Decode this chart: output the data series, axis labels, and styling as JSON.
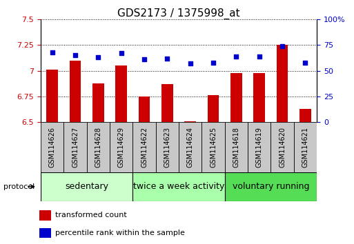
{
  "title": "GDS2173 / 1375998_at",
  "samples": [
    "GSM114626",
    "GSM114627",
    "GSM114628",
    "GSM114629",
    "GSM114622",
    "GSM114623",
    "GSM114624",
    "GSM114625",
    "GSM114618",
    "GSM114619",
    "GSM114620",
    "GSM114621"
  ],
  "bar_values": [
    7.01,
    7.1,
    6.88,
    7.05,
    6.75,
    6.87,
    6.51,
    6.76,
    6.98,
    6.98,
    7.25,
    6.63
  ],
  "percentile_values": [
    68,
    65,
    63,
    67,
    61,
    62,
    57,
    58,
    64,
    64,
    74,
    58
  ],
  "bar_color": "#cc0000",
  "dot_color": "#0000cc",
  "ymin": 6.5,
  "ymax": 7.5,
  "yticks": [
    6.5,
    6.75,
    7.0,
    7.25,
    7.5
  ],
  "ytick_labels": [
    "6.5",
    "6.75",
    "7",
    "7.25",
    "7.5"
  ],
  "y2min": 0,
  "y2max": 100,
  "y2ticks": [
    0,
    25,
    50,
    75,
    100
  ],
  "y2ticklabels": [
    "0",
    "25",
    "50",
    "75",
    "100%"
  ],
  "groups": [
    {
      "label": "sedentary",
      "start": 0,
      "end": 3,
      "color": "#ccffcc"
    },
    {
      "label": "twice a week activity",
      "start": 4,
      "end": 7,
      "color": "#aaffaa"
    },
    {
      "label": "voluntary running",
      "start": 8,
      "end": 11,
      "color": "#55dd55"
    }
  ],
  "protocol_label": "protocol",
  "legend_bar_label": "transformed count",
  "legend_dot_label": "percentile rank within the sample",
  "bar_width": 0.5,
  "tick_label_color_left": "#cc0000",
  "tick_label_color_right": "#0000cc",
  "title_fontsize": 11,
  "tick_fontsize": 8,
  "sample_fontsize": 7,
  "group_fontsize": 9,
  "legend_fontsize": 8,
  "sample_box_color": "#c8c8c8",
  "white": "#ffffff"
}
